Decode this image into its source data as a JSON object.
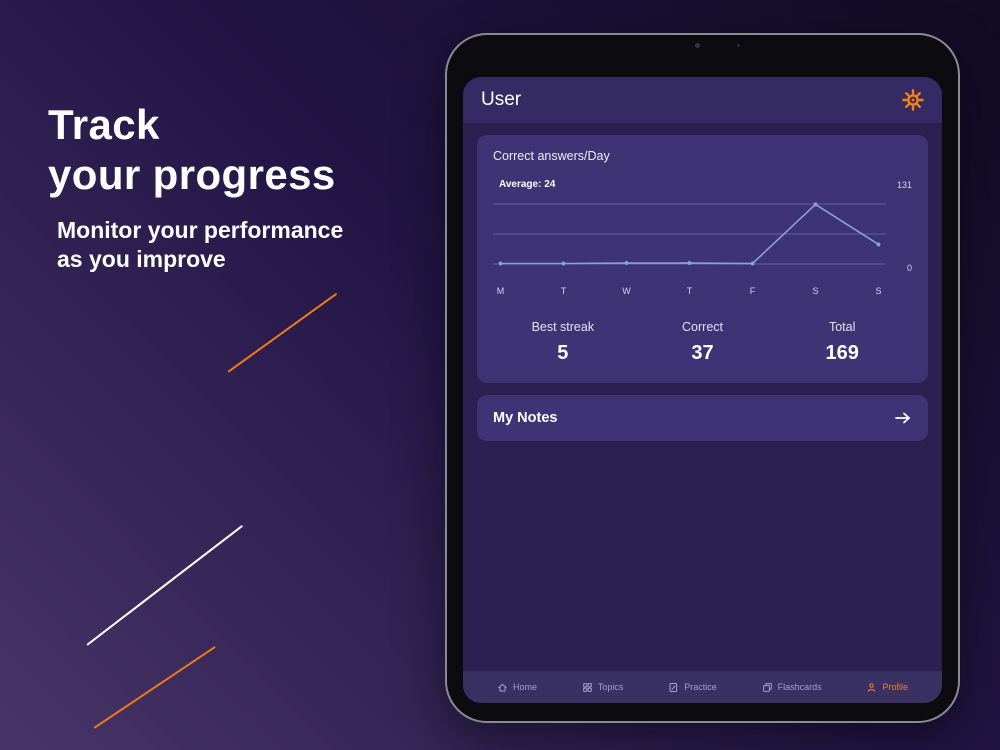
{
  "hero": {
    "title_line1": "Track",
    "title_line2": "your progress",
    "subtitle_line1": "Monitor your performance",
    "subtitle_line2": "as you improve"
  },
  "app": {
    "header": {
      "title": "User"
    },
    "stats": [
      {
        "label": "Best streak",
        "value": "5"
      },
      {
        "label": "Correct",
        "value": "37"
      },
      {
        "label": "Total",
        "value": "169"
      }
    ],
    "notes_card": {
      "title": "My Notes"
    },
    "tabbar": {
      "items": [
        {
          "label": "Home"
        },
        {
          "label": "Topics"
        },
        {
          "label": "Practice"
        },
        {
          "label": "Flashcards"
        },
        {
          "label": "Profile"
        }
      ],
      "active": "Profile"
    }
  },
  "chart_data": {
    "type": "line",
    "title": "Correct answers/Day",
    "categories": [
      "M",
      "T",
      "W",
      "T",
      "F",
      "S",
      "S"
    ],
    "values": [
      1,
      1,
      2,
      2,
      1,
      122,
      40
    ],
    "average": 24,
    "average_label": "Average: 24",
    "ylim": [
      0,
      131
    ],
    "grid": true,
    "legend": false,
    "line_color": "#84a5d8"
  },
  "colors": {
    "accent_orange": "#f5820e",
    "screen_bg": "#2a2151",
    "card_bg": "#3d3375",
    "tabbar_bg": "#393064"
  }
}
